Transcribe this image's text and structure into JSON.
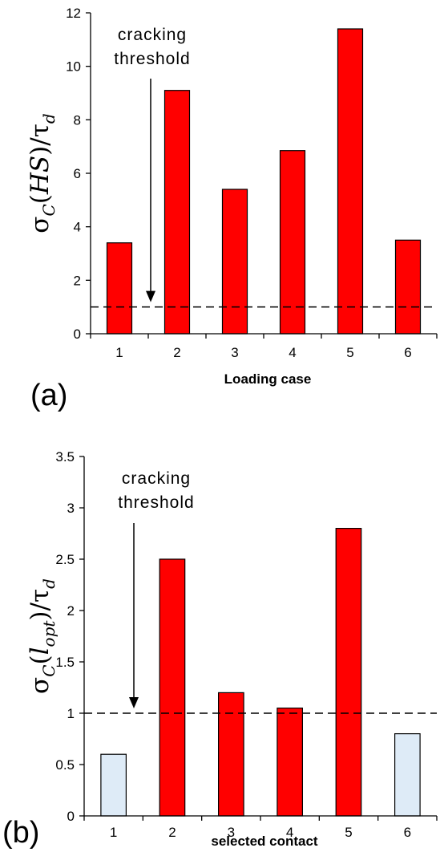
{
  "chart_data": [
    {
      "type": "bar",
      "panel_label": "(a)",
      "categories": [
        "1",
        "2",
        "3",
        "4",
        "5",
        "6"
      ],
      "values": [
        3.4,
        9.1,
        5.4,
        6.85,
        11.4,
        3.5
      ],
      "bar_colors": [
        "#ff0000",
        "#ff0000",
        "#ff0000",
        "#ff0000",
        "#ff0000",
        "#ff0000"
      ],
      "ylabel": {
        "main": "σ",
        "sub1": "C",
        "paren_open": "(",
        "arg": "HS",
        "paren_close": ")",
        "slash": "/τ",
        "sub2": "d"
      },
      "xlabel": "Loading case",
      "ylim": [
        0,
        12
      ],
      "yticks": [
        "0",
        "2",
        "4",
        "6",
        "8",
        "10",
        "12"
      ],
      "threshold": 1,
      "annotation": [
        "cracking",
        "threshold"
      ],
      "grid": false,
      "legend": "none"
    },
    {
      "type": "bar",
      "panel_label": "(b)",
      "categories": [
        "1",
        "2",
        "3",
        "4",
        "5",
        "6"
      ],
      "values": [
        0.6,
        2.5,
        1.2,
        1.05,
        2.8,
        0.8
      ],
      "bar_colors": [
        "#deebf7",
        "#ff0000",
        "#ff0000",
        "#ff0000",
        "#ff0000",
        "#deebf7"
      ],
      "ylabel": {
        "main": "σ",
        "sub1": "C",
        "paren_open": "(",
        "arg": "l",
        "arg_sub": "opt",
        "paren_close": ")",
        "slash": "/τ",
        "sub2": "d"
      },
      "xlabel": "selected contact",
      "ylim": [
        0,
        3.5
      ],
      "yticks": [
        "0",
        "0.5",
        "1",
        "1.5",
        "2",
        "2.5",
        "3",
        "3.5"
      ],
      "threshold": 1,
      "annotation": [
        "cracking",
        "threshold"
      ],
      "grid": false,
      "legend": "none"
    }
  ]
}
